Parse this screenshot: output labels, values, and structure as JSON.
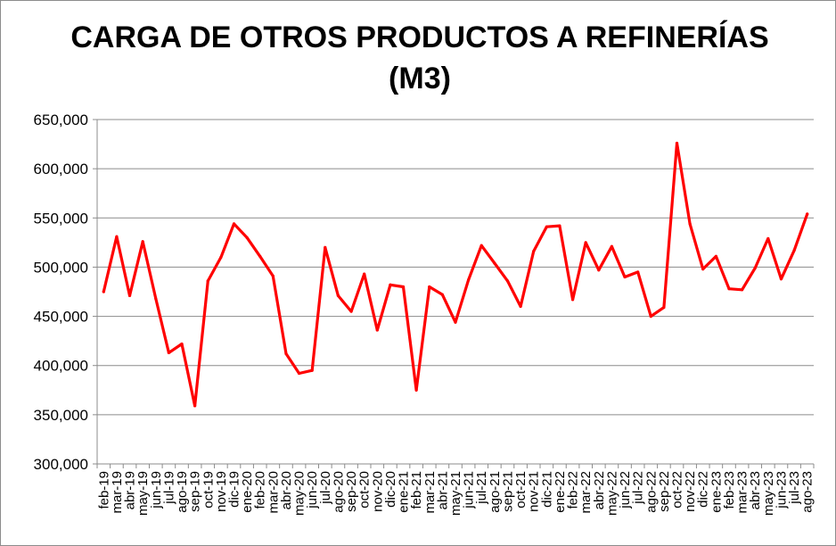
{
  "chart_data": {
    "type": "line",
    "title_line1": "CARGA DE OTROS PRODUCTOS A REFINERÍAS",
    "title_line2": "(M3)",
    "xlabel": "",
    "ylabel": "",
    "ylim": [
      300000,
      650000
    ],
    "y_ticks": [
      300000,
      350000,
      400000,
      450000,
      500000,
      550000,
      600000,
      650000
    ],
    "y_tick_labels": [
      "300,000",
      "350,000",
      "400,000",
      "450,000",
      "500,000",
      "550,000",
      "600,000",
      "650,000"
    ],
    "grid": true,
    "legend": "none",
    "line_color": "#ff0000",
    "categories": [
      "feb-19",
      "mar-19",
      "abr-19",
      "may-19",
      "jun-19",
      "jul-19",
      "ago-19",
      "sep-19",
      "oct-19",
      "nov-19",
      "dic-19",
      "ene-20",
      "feb-20",
      "mar-20",
      "abr-20",
      "may-20",
      "jun-20",
      "jul-20",
      "ago-20",
      "sep-20",
      "oct-20",
      "nov-20",
      "dic-20",
      "ene-21",
      "feb-21",
      "mar-21",
      "abr-21",
      "may-21",
      "jun-21",
      "jul-21",
      "ago-21",
      "sep-21",
      "oct-21",
      "nov-21",
      "dic-21",
      "ene-22",
      "feb-22",
      "mar-22",
      "abr-22",
      "may-22",
      "jun-22",
      "jul-22",
      "ago-22",
      "sep-22",
      "oct-22",
      "nov-22",
      "dic-22",
      "ene-23",
      "feb-23",
      "mar-23",
      "abr-23",
      "may-23",
      "jun-23",
      "jul-23",
      "ago-23"
    ],
    "series": [
      {
        "values": [
          475000,
          531000,
          471000,
          526000,
          468000,
          413000,
          422000,
          359000,
          486000,
          510000,
          544000,
          530000,
          511000,
          491000,
          412000,
          392000,
          395000,
          520000,
          471000,
          455000,
          493000,
          436000,
          482000,
          480000,
          375000,
          480000,
          472000,
          444000,
          487000,
          522000,
          504000,
          486000,
          460000,
          516000,
          541000,
          542000,
          467000,
          525000,
          497000,
          521000,
          490000,
          495000,
          450000,
          459000,
          626000,
          544000,
          498000,
          511000,
          478000,
          477000,
          499000,
          529000,
          488000,
          517000,
          554000
        ]
      }
    ]
  }
}
